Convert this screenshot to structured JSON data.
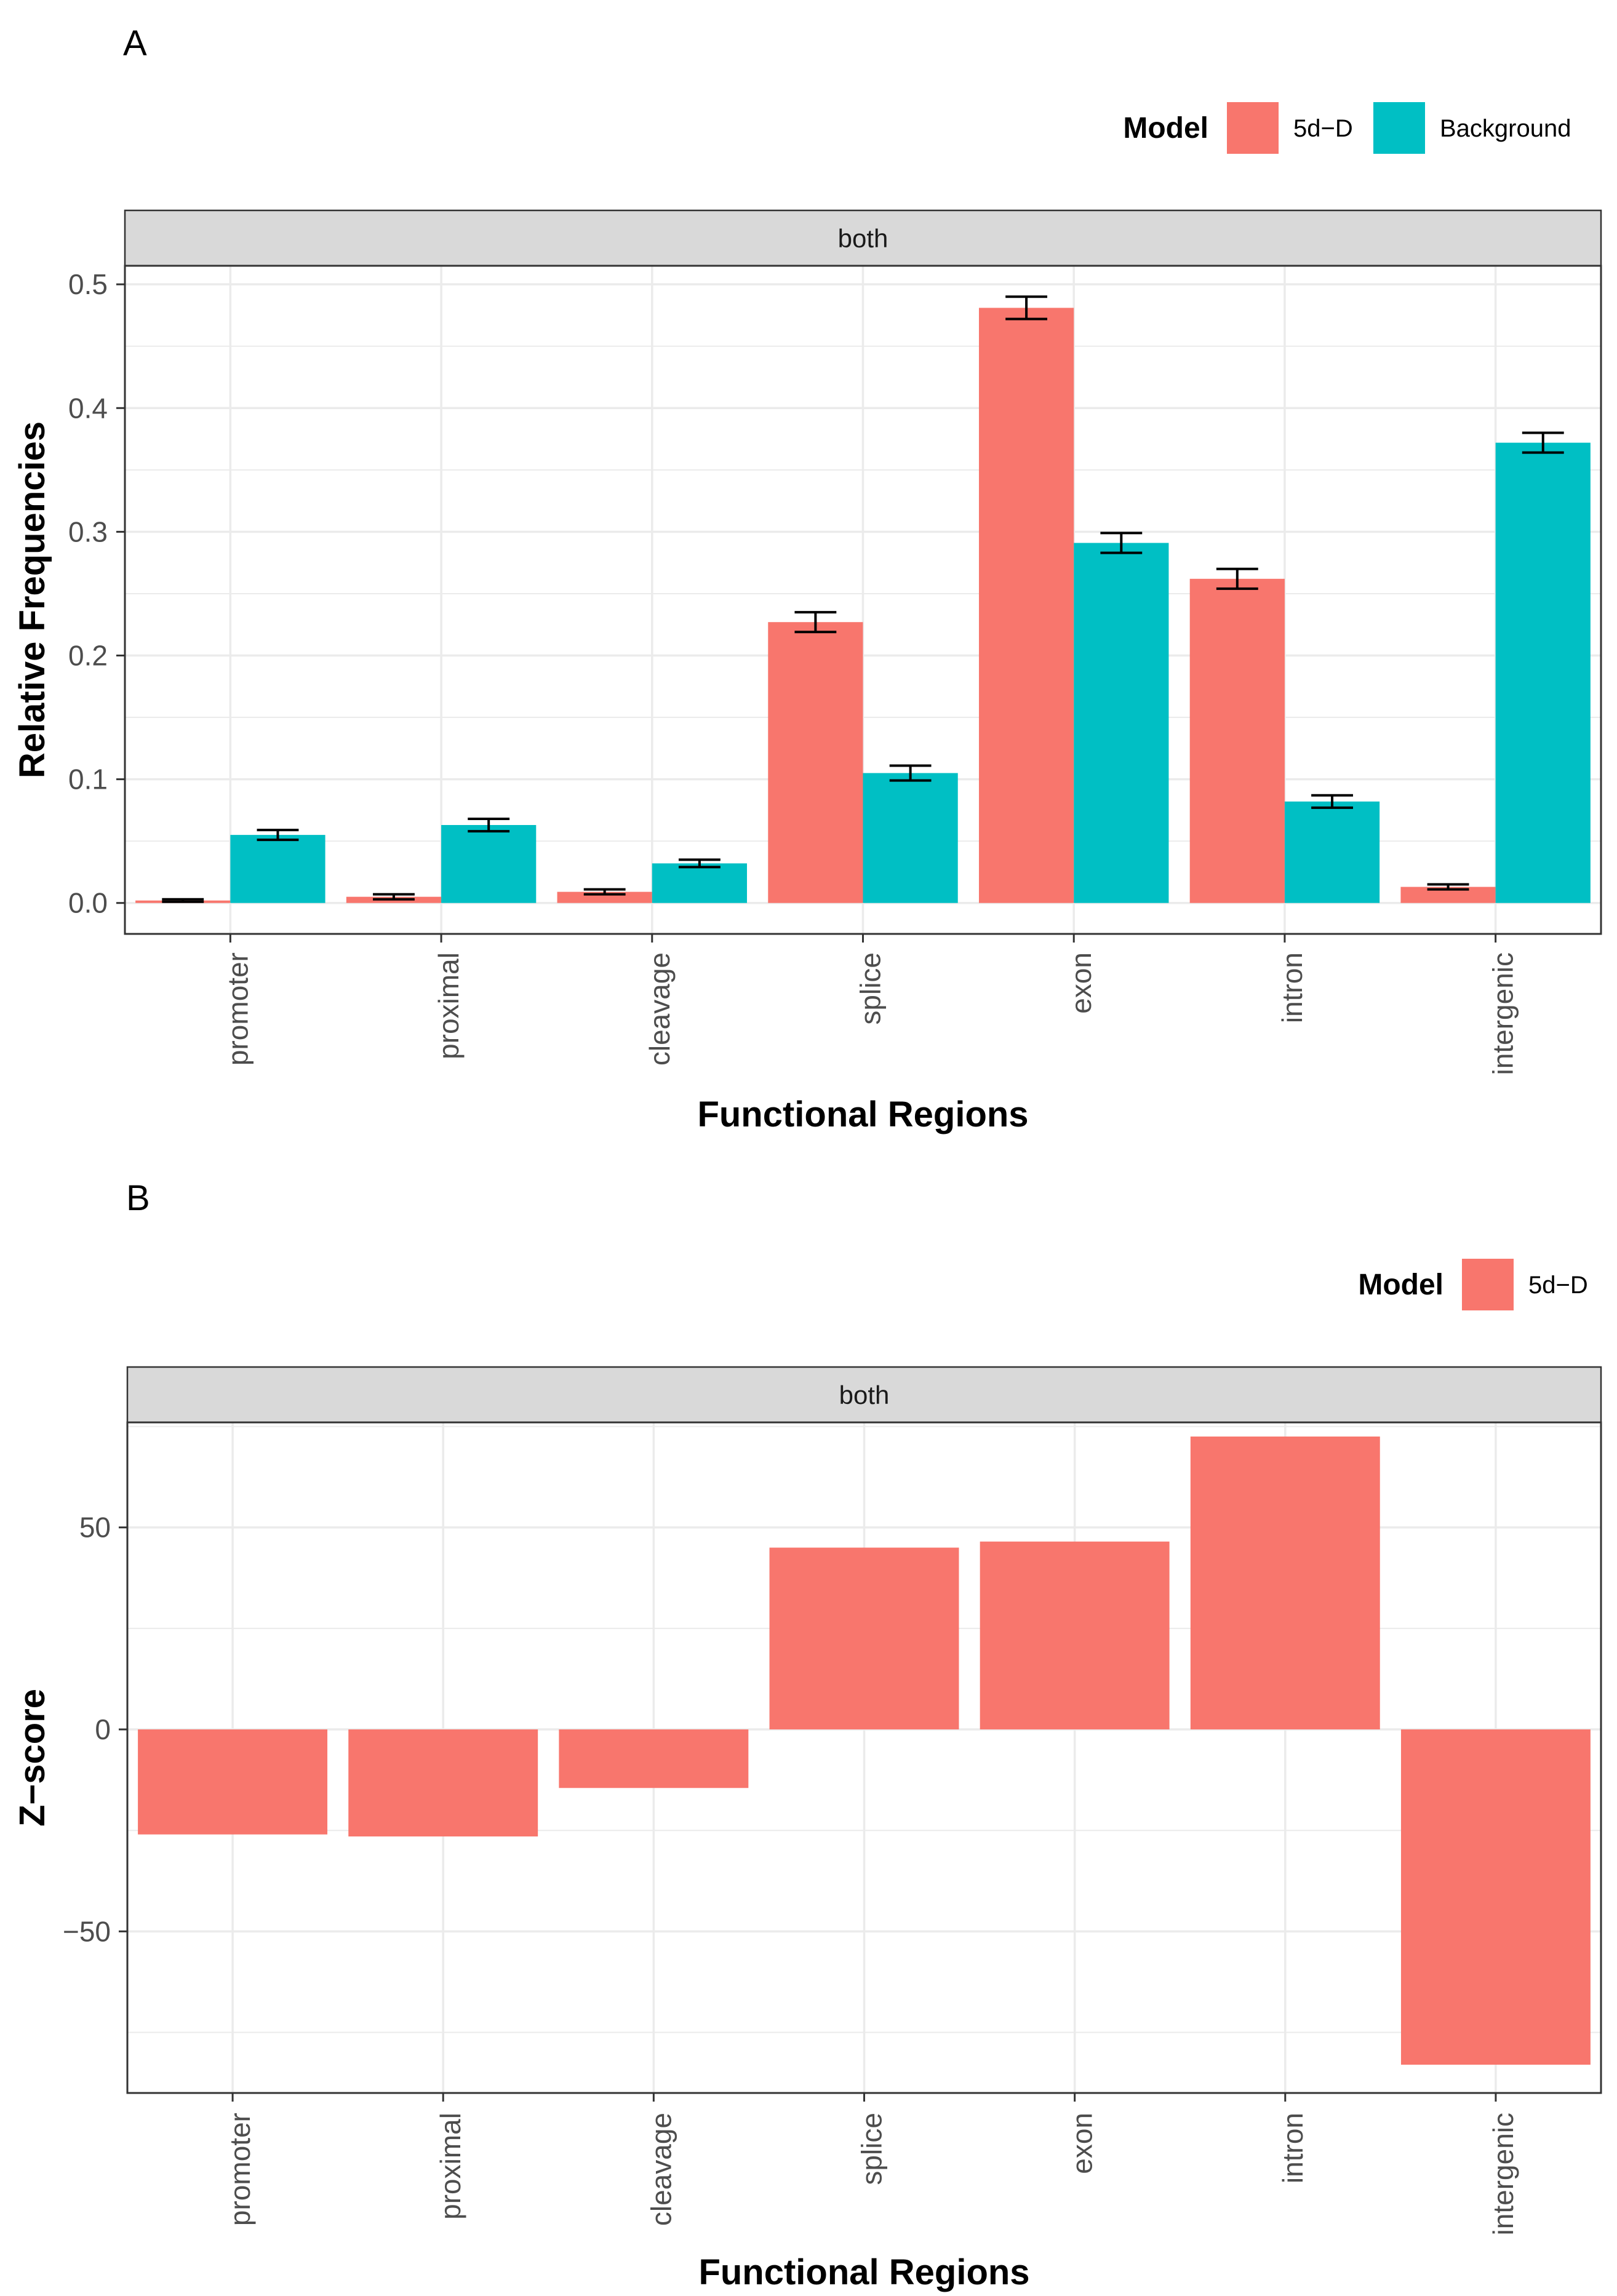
{
  "chart_data": [
    {
      "type": "bar",
      "panel_tag": "A",
      "strip_label": "both",
      "xlabel": "Functional Regions",
      "ylabel": "Relative Frequencies",
      "ylim": [
        -0.025,
        0.515
      ],
      "yticks": [
        "0.0",
        "0.1",
        "0.2",
        "0.3",
        "0.4",
        "0.5"
      ],
      "ytick_values": [
        0,
        0.1,
        0.2,
        0.3,
        0.4,
        0.5
      ],
      "categories": [
        "promoter",
        "proximal",
        "cleavage",
        "splice",
        "exon",
        "intron",
        "intergenic"
      ],
      "legend": {
        "title": "Model",
        "position": "top-right"
      },
      "grid": true,
      "error_bars": true,
      "series": [
        {
          "name": "5d−D",
          "color": "#F8766D",
          "values": [
            0.002,
            0.005,
            0.009,
            0.227,
            0.481,
            0.262,
            0.013
          ],
          "error": [
            0.001,
            0.002,
            0.002,
            0.008,
            0.009,
            0.008,
            0.002
          ]
        },
        {
          "name": "Background",
          "color": "#00BFC4",
          "values": [
            0.055,
            0.063,
            0.032,
            0.105,
            0.291,
            0.082,
            0.372
          ],
          "error": [
            0.004,
            0.005,
            0.003,
            0.006,
            0.008,
            0.005,
            0.008
          ]
        }
      ]
    },
    {
      "type": "bar",
      "panel_tag": "B",
      "strip_label": "both",
      "xlabel": "Functional Regions",
      "ylabel": "Z−score",
      "ylim": [
        -90,
        76
      ],
      "yticks": [
        "−50",
        "0",
        "50"
      ],
      "ytick_values": [
        -50,
        0,
        50
      ],
      "categories": [
        "promoter",
        "proximal",
        "cleavage",
        "splice",
        "exon",
        "intron",
        "intergenic"
      ],
      "legend": {
        "title": "Model",
        "position": "top-right"
      },
      "grid": true,
      "series": [
        {
          "name": "5d−D",
          "color": "#F8766D",
          "values": [
            -26,
            -26.5,
            -14.5,
            45,
            46.5,
            72.5,
            -83
          ]
        }
      ]
    }
  ]
}
